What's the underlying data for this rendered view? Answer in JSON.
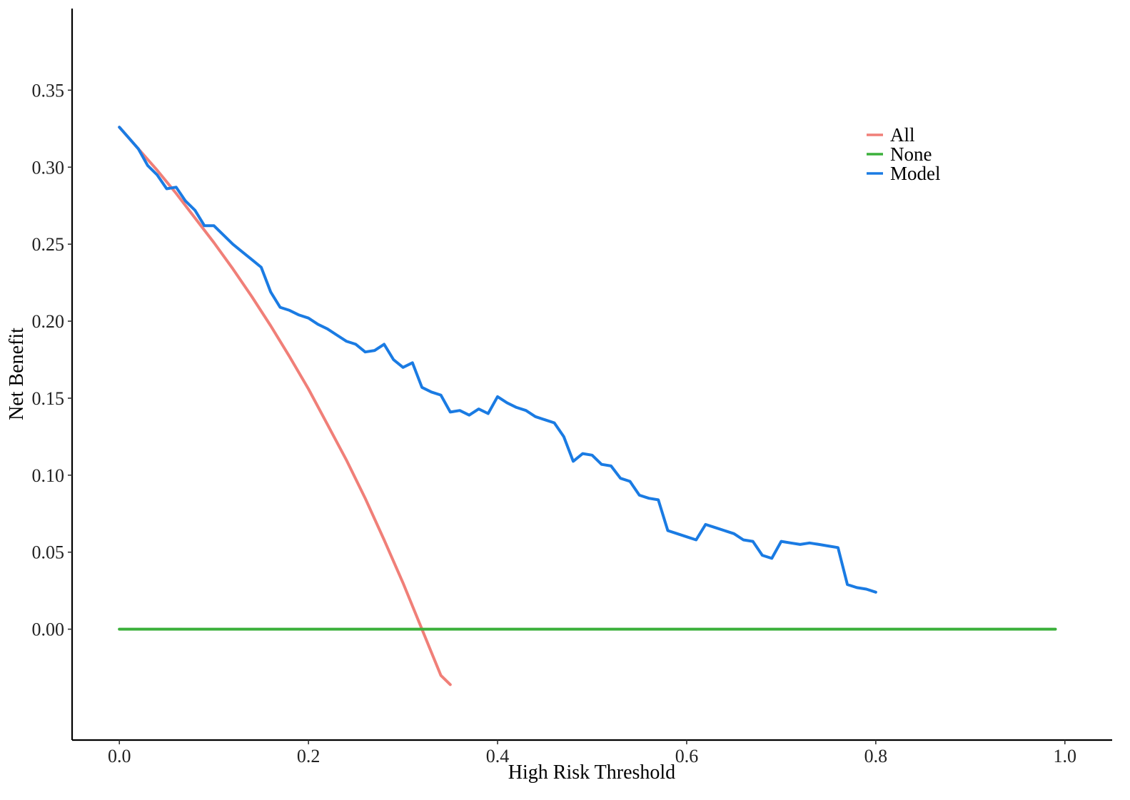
{
  "chart_data": {
    "type": "line",
    "title": "",
    "xlabel": "High Risk Threshold",
    "ylabel": "Net Benefit",
    "xlim": [
      -0.05,
      1.05
    ],
    "ylim": [
      -0.072,
      0.403
    ],
    "x_ticks": [
      0.0,
      0.2,
      0.4,
      0.6,
      0.8,
      1.0
    ],
    "x_tick_labels": [
      "0.0",
      "0.2",
      "0.4",
      "0.6",
      "0.8",
      "1.0"
    ],
    "y_ticks": [
      0.0,
      0.05,
      0.1,
      0.15,
      0.2,
      0.25,
      0.3,
      0.35
    ],
    "y_tick_labels": [
      "0.00",
      "0.05",
      "0.10",
      "0.15",
      "0.20",
      "0.25",
      "0.30",
      "0.35"
    ],
    "grid": false,
    "legend_position": "top-right",
    "series": [
      {
        "name": "All",
        "color": "#f07f78",
        "x": [
          0.0,
          0.02,
          0.04,
          0.06,
          0.08,
          0.1,
          0.12,
          0.14,
          0.16,
          0.18,
          0.2,
          0.22,
          0.24,
          0.26,
          0.28,
          0.3,
          0.32,
          0.33,
          0.34,
          0.35
        ],
        "y": [
          0.326,
          0.312,
          0.298,
          0.283,
          0.267,
          0.251,
          0.234,
          0.216,
          0.197,
          0.177,
          0.156,
          0.133,
          0.11,
          0.085,
          0.058,
          0.03,
          0.0,
          -0.015,
          -0.03,
          -0.036
        ]
      },
      {
        "name": "None",
        "color": "#3bb03b",
        "x": [
          0.0,
          0.99
        ],
        "y": [
          0.0,
          0.0
        ]
      },
      {
        "name": "Model",
        "color": "#1a7be3",
        "x": [
          0.0,
          0.01,
          0.02,
          0.03,
          0.04,
          0.05,
          0.06,
          0.07,
          0.08,
          0.09,
          0.1,
          0.11,
          0.12,
          0.13,
          0.14,
          0.15,
          0.16,
          0.17,
          0.18,
          0.19,
          0.2,
          0.21,
          0.22,
          0.23,
          0.24,
          0.25,
          0.26,
          0.27,
          0.28,
          0.29,
          0.3,
          0.31,
          0.32,
          0.33,
          0.34,
          0.35,
          0.36,
          0.37,
          0.38,
          0.39,
          0.4,
          0.41,
          0.42,
          0.43,
          0.44,
          0.45,
          0.46,
          0.47,
          0.48,
          0.49,
          0.5,
          0.51,
          0.52,
          0.53,
          0.54,
          0.55,
          0.56,
          0.57,
          0.58,
          0.59,
          0.6,
          0.61,
          0.62,
          0.63,
          0.64,
          0.65,
          0.66,
          0.67,
          0.68,
          0.69,
          0.7,
          0.71,
          0.72,
          0.73,
          0.74,
          0.75,
          0.76,
          0.77,
          0.78,
          0.79,
          0.8
        ],
        "y": [
          0.326,
          0.319,
          0.312,
          0.301,
          0.295,
          0.286,
          0.287,
          0.278,
          0.272,
          0.262,
          0.262,
          0.256,
          0.25,
          0.245,
          0.24,
          0.235,
          0.219,
          0.209,
          0.207,
          0.204,
          0.202,
          0.198,
          0.195,
          0.191,
          0.187,
          0.185,
          0.18,
          0.181,
          0.185,
          0.175,
          0.17,
          0.173,
          0.157,
          0.154,
          0.152,
          0.141,
          0.142,
          0.139,
          0.143,
          0.14,
          0.151,
          0.147,
          0.144,
          0.142,
          0.138,
          0.136,
          0.134,
          0.125,
          0.109,
          0.114,
          0.113,
          0.107,
          0.106,
          0.098,
          0.096,
          0.087,
          0.085,
          0.084,
          0.064,
          0.062,
          0.06,
          0.058,
          0.068,
          0.066,
          0.064,
          0.062,
          0.058,
          0.057,
          0.048,
          0.046,
          0.057,
          0.056,
          0.055,
          0.056,
          0.055,
          0.054,
          0.053,
          0.029,
          0.027,
          0.026,
          0.024
        ]
      }
    ]
  }
}
